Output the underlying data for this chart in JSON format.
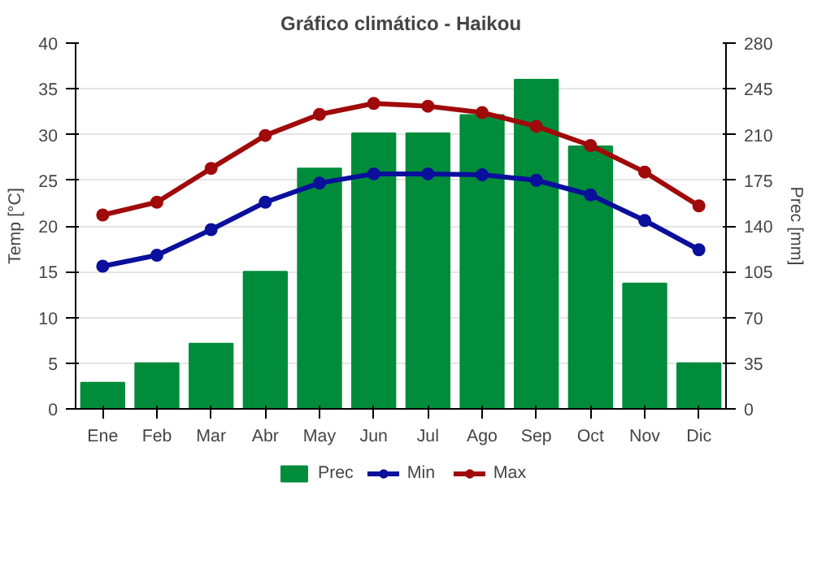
{
  "chart_data": {
    "type": "bar",
    "title": "Gráfico climático - Haikou",
    "ylabel": "Temp [°C]",
    "y2label": "Prec [mm]",
    "categories": [
      "Ene",
      "Feb",
      "Mar",
      "Abr",
      "May",
      "Jun",
      "Jul",
      "Ago",
      "Sep",
      "Oct",
      "Nov",
      "Dic"
    ],
    "series": [
      {
        "name": "Prec",
        "axis": "y2",
        "color": "#008c3a",
        "values": [
          20,
          35,
          50,
          105,
          184,
          211,
          211,
          225,
          252,
          201,
          96,
          35
        ]
      },
      {
        "name": "Min",
        "type": "line",
        "color": "#0a0f9c",
        "values": [
          15.6,
          16.8,
          19.6,
          22.6,
          24.7,
          25.7,
          25.7,
          25.6,
          25.0,
          23.4,
          20.6,
          17.4
        ]
      },
      {
        "name": "Max",
        "type": "line",
        "color": "#a00a0a",
        "values": [
          21.2,
          22.6,
          26.3,
          29.9,
          32.2,
          33.4,
          33.1,
          32.4,
          30.9,
          28.8,
          25.9,
          22.2
        ]
      }
    ],
    "ylim": [
      0,
      40
    ],
    "yticks": [
      0,
      5,
      10,
      15,
      20,
      25,
      30,
      35,
      40
    ],
    "y2lim": [
      0,
      280
    ],
    "y2ticks": [
      0,
      35,
      70,
      105,
      140,
      175,
      210,
      245,
      280
    ],
    "grid": "y",
    "legend": "bottom",
    "marker": "circle"
  }
}
